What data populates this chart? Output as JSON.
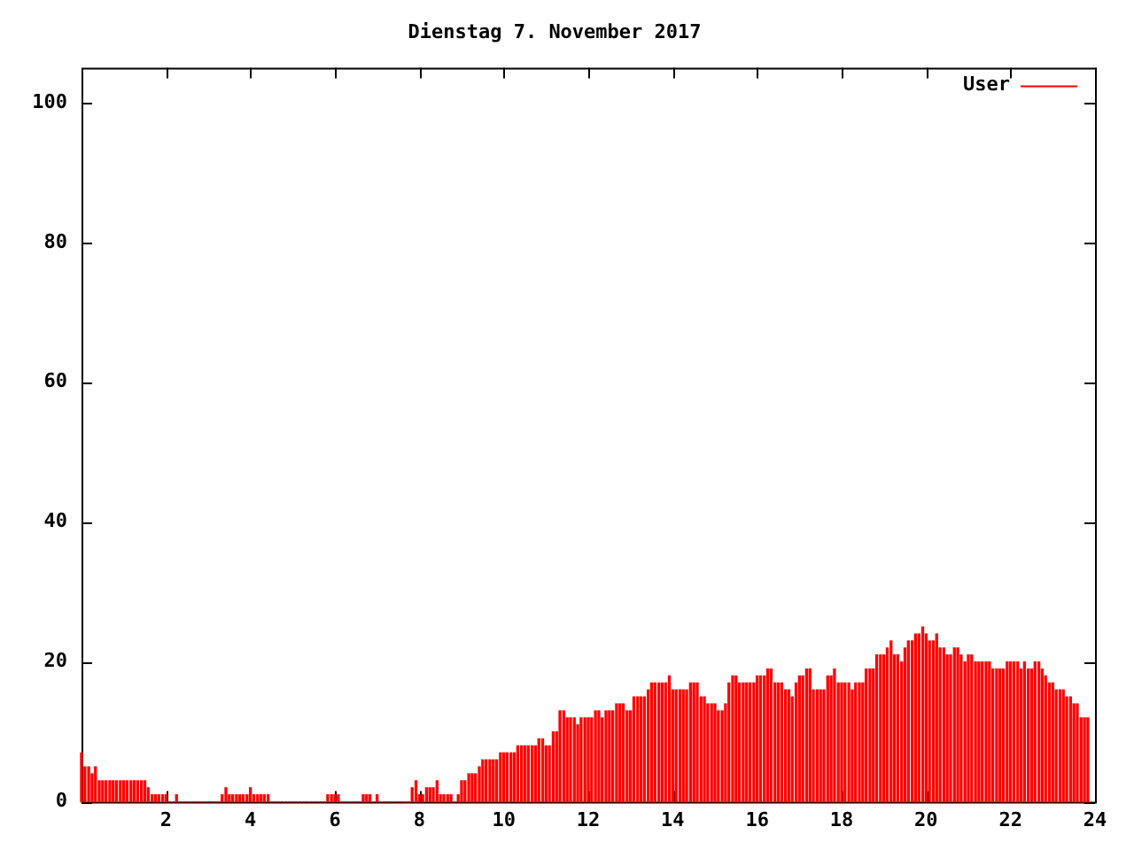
{
  "chart_data": {
    "type": "bar",
    "title": "Dienstag 7. November 2017",
    "x": [
      0,
      0.08,
      0.17,
      0.25,
      0.33,
      0.42,
      0.5,
      0.58,
      0.67,
      0.75,
      0.83,
      0.92,
      1,
      1.08,
      1.17,
      1.25,
      1.33,
      1.42,
      1.5,
      1.58,
      1.67,
      1.75,
      1.83,
      1.92,
      2,
      2.08,
      2.17,
      2.25,
      2.33,
      2.42,
      2.5,
      2.58,
      2.67,
      2.75,
      2.83,
      2.92,
      3,
      3.08,
      3.17,
      3.25,
      3.33,
      3.42,
      3.5,
      3.58,
      3.67,
      3.75,
      3.83,
      3.92,
      4,
      4.08,
      4.17,
      4.25,
      4.33,
      4.42,
      4.5,
      4.58,
      4.67,
      4.75,
      4.83,
      4.92,
      5,
      5.08,
      5.17,
      5.25,
      5.33,
      5.42,
      5.5,
      5.58,
      5.67,
      5.75,
      5.83,
      5.92,
      6,
      6.08,
      6.17,
      6.25,
      6.33,
      6.42,
      6.5,
      6.58,
      6.67,
      6.75,
      6.83,
      6.92,
      7,
      7.08,
      7.17,
      7.25,
      7.33,
      7.42,
      7.5,
      7.58,
      7.67,
      7.75,
      7.83,
      7.92,
      8,
      8.08,
      8.17,
      8.25,
      8.33,
      8.42,
      8.5,
      8.58,
      8.67,
      8.75,
      8.83,
      8.92,
      9,
      9.08,
      9.17,
      9.25,
      9.33,
      9.42,
      9.5,
      9.58,
      9.67,
      9.75,
      9.83,
      9.92,
      10,
      10.08,
      10.17,
      10.25,
      10.33,
      10.42,
      10.5,
      10.58,
      10.67,
      10.75,
      10.83,
      10.92,
      11,
      11.08,
      11.17,
      11.25,
      11.33,
      11.42,
      11.5,
      11.58,
      11.67,
      11.75,
      11.83,
      11.92,
      12,
      12.08,
      12.17,
      12.25,
      12.33,
      12.42,
      12.5,
      12.58,
      12.67,
      12.75,
      12.83,
      12.92,
      13,
      13.08,
      13.17,
      13.25,
      13.33,
      13.42,
      13.5,
      13.58,
      13.67,
      13.75,
      13.83,
      13.92,
      14,
      14.08,
      14.17,
      14.25,
      14.33,
      14.42,
      14.5,
      14.58,
      14.67,
      14.75,
      14.83,
      14.92,
      15,
      15.08,
      15.17,
      15.25,
      15.33,
      15.42,
      15.5,
      15.58,
      15.67,
      15.75,
      15.83,
      15.92,
      16,
      16.08,
      16.17,
      16.25,
      16.33,
      16.42,
      16.5,
      16.58,
      16.67,
      16.75,
      16.83,
      16.92,
      17,
      17.08,
      17.17,
      17.25,
      17.33,
      17.42,
      17.5,
      17.58,
      17.67,
      17.75,
      17.83,
      17.92,
      18,
      18.08,
      18.17,
      18.25,
      18.33,
      18.42,
      18.5,
      18.58,
      18.67,
      18.75,
      18.83,
      18.92,
      19,
      19.08,
      19.17,
      19.25,
      19.33,
      19.42,
      19.5,
      19.58,
      19.67,
      19.75,
      19.83,
      19.92,
      20,
      20.08,
      20.17,
      20.25,
      20.33,
      20.42,
      20.5,
      20.58,
      20.67,
      20.75,
      20.83,
      20.92,
      21,
      21.08,
      21.17,
      21.25,
      21.33,
      21.42,
      21.5,
      21.58,
      21.67,
      21.75,
      21.83,
      21.92,
      22,
      22.08,
      22.17,
      22.25,
      22.33,
      22.42,
      22.5,
      22.58,
      22.67,
      22.75,
      22.83,
      22.92,
      23,
      23.08,
      23.17,
      23.25,
      23.33,
      23.42,
      23.5,
      23.58,
      23.67,
      23.75,
      23.83
    ],
    "series": [
      {
        "name": "User",
        "color": "#ff0000",
        "values": [
          7,
          5,
          5,
          4,
          5,
          3,
          3,
          3,
          3,
          3,
          3,
          3,
          3,
          3,
          3,
          3,
          3,
          3,
          3,
          2,
          1,
          1,
          1,
          1,
          1,
          0,
          0,
          1,
          0,
          0,
          0,
          0,
          0,
          0,
          0,
          0,
          0,
          0,
          0,
          0,
          1,
          2,
          1,
          1,
          1,
          1,
          1,
          1,
          2,
          1,
          1,
          1,
          1,
          1,
          0,
          0,
          0,
          0,
          0,
          0,
          0,
          0,
          0,
          0,
          0,
          0,
          0,
          0,
          0,
          0,
          1,
          1,
          1,
          1,
          0,
          0,
          0,
          0,
          0,
          0,
          1,
          1,
          1,
          0,
          1,
          0,
          0,
          0,
          0,
          0,
          0,
          0,
          0,
          0,
          2,
          3,
          1,
          1,
          2,
          2,
          2,
          3,
          1,
          1,
          1,
          1,
          0,
          1,
          3,
          3,
          4,
          4,
          4,
          5,
          6,
          6,
          6,
          6,
          6,
          7,
          7,
          7,
          7,
          7,
          8,
          8,
          8,
          8,
          8,
          8,
          9,
          9,
          8,
          8,
          10,
          10,
          13,
          13,
          12,
          12,
          12,
          11,
          12,
          12,
          12,
          12,
          13,
          13,
          12,
          13,
          13,
          13,
          14,
          14,
          14,
          13,
          13,
          15,
          15,
          15,
          15,
          16,
          17,
          17,
          17,
          17,
          17,
          18,
          16,
          16,
          16,
          16,
          16,
          17,
          17,
          17,
          15,
          15,
          14,
          14,
          14,
          13,
          13,
          14,
          17,
          18,
          18,
          17,
          17,
          17,
          17,
          17,
          18,
          18,
          18,
          19,
          19,
          17,
          17,
          17,
          16,
          16,
          15,
          17,
          18,
          18,
          19,
          19,
          16,
          16,
          16,
          16,
          18,
          18,
          19,
          17,
          17,
          17,
          17,
          16,
          17,
          17,
          17,
          19,
          19,
          19,
          21,
          21,
          21,
          22,
          23,
          21,
          21,
          20,
          22,
          23,
          23,
          24,
          24,
          25,
          24,
          23,
          23,
          24,
          22,
          22,
          21,
          21,
          22,
          22,
          21,
          20,
          21,
          21,
          20,
          20,
          20,
          20,
          20,
          19,
          19,
          19,
          19,
          20,
          20,
          20,
          20,
          19,
          20,
          19,
          19,
          20,
          20,
          19,
          18,
          17,
          17,
          16,
          16,
          16,
          15,
          15,
          14,
          14,
          12,
          12,
          12
        ]
      }
    ],
    "xlim": [
      0,
      24
    ],
    "xticks": [
      2,
      4,
      6,
      8,
      10,
      12,
      14,
      16,
      18,
      20,
      22,
      24
    ],
    "ylim": [
      0,
      105
    ],
    "yticks": [
      0,
      20,
      40,
      60,
      80,
      100
    ],
    "grid": false,
    "legend": "top right"
  }
}
